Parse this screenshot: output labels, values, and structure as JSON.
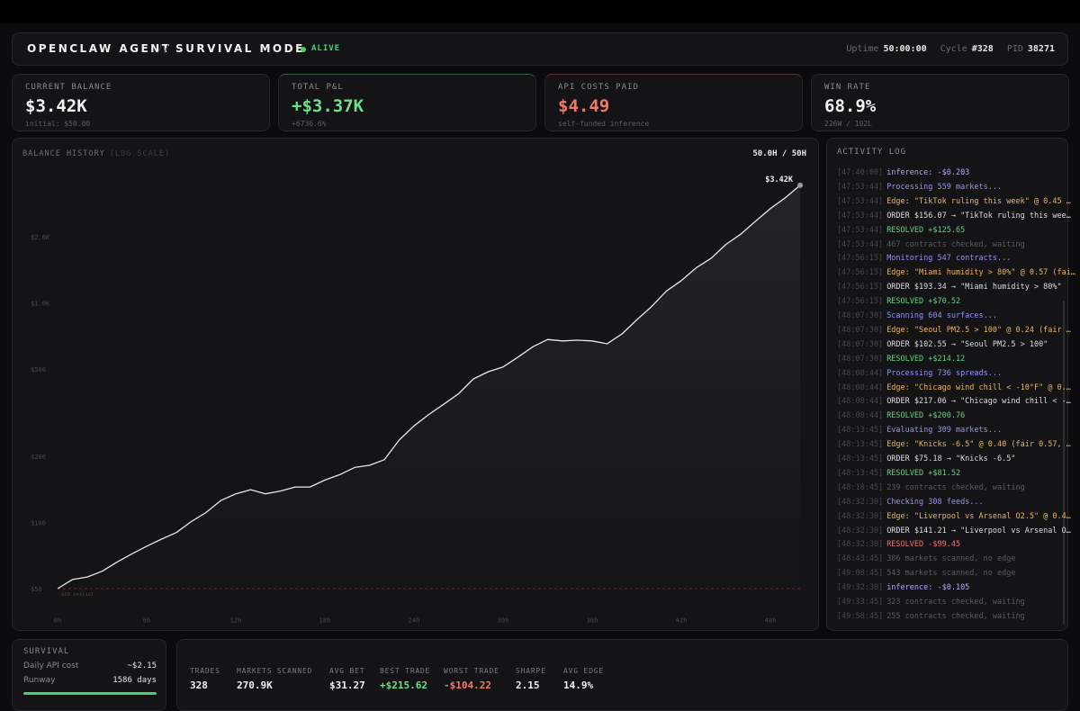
{
  "header": {
    "title": "OPENCLAW AGENT",
    "separator": "//",
    "mode": "SURVIVAL MODE",
    "status": "ALIVE",
    "uptime_label": "Uptime",
    "uptime": "50:00:00",
    "cycle_label": "Cycle",
    "cycle": "#328",
    "pid_label": "PID",
    "pid": "38271"
  },
  "cards": [
    {
      "label": "CURRENT BALANCE",
      "value": "$3.42K",
      "sub": "initial: $50.00",
      "color": "#f2f2f2"
    },
    {
      "label": "TOTAL P&L",
      "value": "+$3.37K",
      "sub": "+6736.6%",
      "color": "#6fe08a"
    },
    {
      "label": "API COSTS PAID",
      "value": "$4.49",
      "sub": "self-funded inference",
      "color": "#f07a6a"
    },
    {
      "label": "WIN RATE",
      "value": "68.9%",
      "sub": "226W / 102L",
      "color": "#f2f2f2"
    }
  ],
  "chart_data": {
    "type": "line",
    "title": "BALANCE HISTORY",
    "subtitle": "(LOG SCALE)",
    "progress_label": "50.0H / 50H",
    "log_scale": true,
    "color": "#e8e8e8",
    "x": [
      0,
      1,
      2,
      3,
      4,
      5,
      6,
      7,
      8,
      9,
      10,
      11,
      12,
      13,
      14,
      15,
      16,
      17,
      18,
      19,
      20,
      21,
      22,
      23,
      24,
      25,
      26,
      27,
      28,
      29,
      30,
      31,
      32,
      33,
      34,
      35,
      36,
      37,
      38,
      39,
      40,
      41,
      42,
      43,
      44,
      45,
      46,
      47,
      48,
      49,
      50
    ],
    "values": [
      50,
      55,
      56.5,
      60,
      66,
      72,
      78,
      84,
      90,
      101,
      111,
      126,
      135,
      141,
      135,
      139,
      145,
      145,
      156,
      165,
      178,
      182,
      193,
      237,
      275,
      310,
      345,
      385,
      450,
      485,
      510,
      565,
      630,
      680,
      670,
      675,
      670,
      650,
      720,
      835,
      960,
      1130,
      1260,
      1440,
      1590,
      1840,
      2050,
      2350,
      2680,
      3000,
      3420
    ],
    "end_label": "$3.42K",
    "baseline": {
      "value": 50,
      "label": "$50 initial"
    },
    "xlim": [
      0,
      50
    ],
    "xticks": [
      {
        "value": 0,
        "label": "0h"
      },
      {
        "value": 6,
        "label": "6h"
      },
      {
        "value": 12,
        "label": "12h"
      },
      {
        "value": 18,
        "label": "18h"
      },
      {
        "value": 24,
        "label": "24h"
      },
      {
        "value": 30,
        "label": "30h"
      },
      {
        "value": 36,
        "label": "36h"
      },
      {
        "value": 42,
        "label": "42h"
      },
      {
        "value": 48,
        "label": "48h"
      }
    ],
    "ylim": [
      40,
      3800
    ],
    "yticks": [
      {
        "value": 50,
        "label": "$50"
      },
      {
        "value": 100,
        "label": "$100"
      },
      {
        "value": 200,
        "label": "$200"
      },
      {
        "value": 500,
        "label": "$500"
      },
      {
        "value": 1000,
        "label": "$1.0K"
      },
      {
        "value": 2000,
        "label": "$2.0K"
      }
    ]
  },
  "activity_log": {
    "title": "ACTIVITY LOG",
    "entries": [
      {
        "time": "[47:40:00]",
        "text": "inference: -$0.203",
        "color": "#b1a6f7"
      },
      {
        "time": "[47:53:44]",
        "text": "Processing 559 markets...",
        "color": "#9292f2"
      },
      {
        "time": "[47:53:44]",
        "text": "Edge: \"TikTok ruling this week\" @ 0.45 …",
        "color": "#f0b25a"
      },
      {
        "time": "[47:53:44]",
        "text": "ORDER $156.07 → \"TikTok ruling this wee…",
        "color": "#dcdcdc"
      },
      {
        "time": "[47:53:44]",
        "text": "RESOLVED +$125.65",
        "color": "#5fd47a"
      },
      {
        "time": "[47:53:44]",
        "text": "467 contracts checked, waiting",
        "color": "#5a5a60"
      },
      {
        "time": "[47:56:15]",
        "text": "Monitoring 547 contracts...",
        "color": "#9292f2"
      },
      {
        "time": "[47:56:15]",
        "text": "Edge: \"Miami humidity > 80%\" @ 0.57 (fai…",
        "color": "#f0b25a"
      },
      {
        "time": "[47:56:15]",
        "text": "ORDER $193.34 → \"Miami humidity > 80%\"",
        "color": "#dcdcdc"
      },
      {
        "time": "[47:56:15]",
        "text": "RESOLVED +$70.52",
        "color": "#5fd47a"
      },
      {
        "time": "[48:07:30]",
        "text": "Scanning 604 surfaces...",
        "color": "#9292f2"
      },
      {
        "time": "[48:07:30]",
        "text": "Edge: \"Seoul PM2.5 > 100\" @ 0.24 (fair …",
        "color": "#f0b25a"
      },
      {
        "time": "[48:07:30]",
        "text": "ORDER $102.55 → \"Seoul PM2.5 > 100\"",
        "color": "#dcdcdc"
      },
      {
        "time": "[48:07:30]",
        "text": "RESOLVED +$214.12",
        "color": "#5fd47a"
      },
      {
        "time": "[48:08:44]",
        "text": "Processing 736 spreads...",
        "color": "#9292f2"
      },
      {
        "time": "[48:08:44]",
        "text": "Edge: \"Chicago wind chill < -10°F\" @ 0.…",
        "color": "#f0b25a"
      },
      {
        "time": "[48:08:44]",
        "text": "ORDER $217.06 → \"Chicago wind chill < -…",
        "color": "#dcdcdc"
      },
      {
        "time": "[48:08:44]",
        "text": "RESOLVED +$200.76",
        "color": "#5fd47a"
      },
      {
        "time": "[48:13:45]",
        "text": "Evaluating 309 markets...",
        "color": "#9292f2"
      },
      {
        "time": "[48:13:45]",
        "text": "Edge: \"Knicks -6.5\" @ 0.40 (fair 0.57, …",
        "color": "#f0b25a"
      },
      {
        "time": "[48:13:45]",
        "text": "ORDER $75.18 → \"Knicks -6.5\"",
        "color": "#dcdcdc"
      },
      {
        "time": "[48:13:45]",
        "text": "RESOLVED +$81.52",
        "color": "#5fd47a"
      },
      {
        "time": "[48:18:45]",
        "text": "239 contracts checked, waiting",
        "color": "#5a5a60"
      },
      {
        "time": "[48:32:30]",
        "text": "Checking 308 feeds...",
        "color": "#9292f2"
      },
      {
        "time": "[48:32:30]",
        "text": "Edge: \"Liverpool vs Arsenal O2.5\" @ 0.4…",
        "color": "#f0b25a"
      },
      {
        "time": "[48:32:30]",
        "text": "ORDER $141.21 → \"Liverpool vs Arsenal O…",
        "color": "#dcdcdc"
      },
      {
        "time": "[48:32:30]",
        "text": "RESOLVED -$99.45",
        "color": "#f07070"
      },
      {
        "time": "[48:43:45]",
        "text": "306 markets scanned, no edge",
        "color": "#5a5a60"
      },
      {
        "time": "[49:08:45]",
        "text": "543 markets scanned, no edge",
        "color": "#5a5a60"
      },
      {
        "time": "[49:32:30]",
        "text": "inference: -$0.105",
        "color": "#b1a6f7"
      },
      {
        "time": "[49:33:45]",
        "text": "323 contracts checked, waiting",
        "color": "#5a5a60"
      },
      {
        "time": "[49:58:45]",
        "text": "255 contracts checked, waiting",
        "color": "#5a5a60"
      }
    ]
  },
  "survival": {
    "title": "SURVIVAL",
    "rows": [
      {
        "label": "Daily API cost",
        "value": "~$2.15"
      },
      {
        "label": "Runway",
        "value": "1586 days"
      }
    ]
  },
  "stats": [
    {
      "label": "TRADES",
      "value": "328",
      "color": "#f2f2f2"
    },
    {
      "label": "MARKETS SCANNED",
      "value": "270.9K",
      "color": "#f2f2f2"
    },
    {
      "label": "AVG BET",
      "value": "$31.27",
      "color": "#f2f2f2"
    },
    {
      "label": "BEST TRADE",
      "value": "+$215.62",
      "color": "#6fe08a"
    },
    {
      "label": "WORST TRADE",
      "value": "-$104.22",
      "color": "#f07a6a"
    },
    {
      "label": "SHARPE",
      "value": "2.15",
      "color": "#f2f2f2"
    },
    {
      "label": "AVG EDGE",
      "value": "14.9%",
      "color": "#f2f2f2"
    }
  ]
}
